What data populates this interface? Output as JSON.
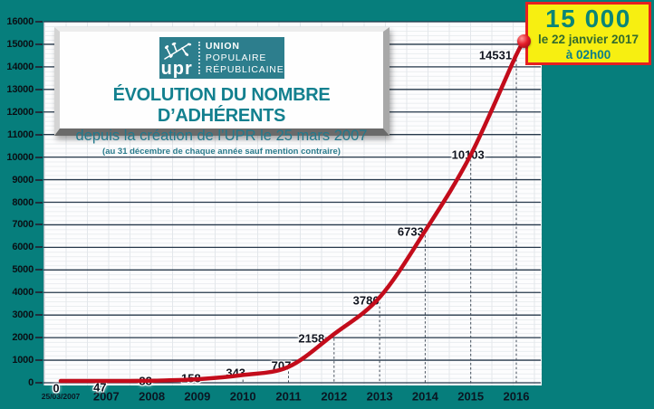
{
  "title_card": {
    "logo": {
      "acronym": "upr",
      "org_lines": [
        "UNION",
        "POPULAIRE",
        "RÉPUBLICAINE"
      ]
    },
    "heading": "ÉVOLUTION DU NOMBRE D’ADHÉRENTS",
    "subheading": "depuis la création de l’UPR le 25 mars 2007",
    "note": "(au 31 décembre de chaque année sauf mention contraire)"
  },
  "callout": {
    "headline": "15 000",
    "date_line": "le 22 janvier 2017",
    "time_line": "à 02h00"
  },
  "chart_data": {
    "type": "line",
    "title": "Évolution du nombre d’adhérents de l’UPR depuis le 25 mars 2007",
    "categories": [
      "25/03/2007",
      "2007",
      "2008",
      "2009",
      "2010",
      "2011",
      "2012",
      "2013",
      "2014",
      "2015",
      "2016"
    ],
    "values": [
      0,
      47,
      88,
      158,
      343,
      707,
      2158,
      3786,
      6733,
      10103,
      14531
    ],
    "data_labels": [
      "0",
      "47",
      "88",
      "158",
      "343",
      "707",
      "2158",
      "3786",
      "6733",
      "10103",
      "14531"
    ],
    "final_point": {
      "value": 15000,
      "shown_in_callout": "15 000 le 22 janvier 2017 à 02h00"
    },
    "ylim": [
      0,
      16000
    ],
    "y_tick_step": 1000,
    "y_tick_labels": [
      "0",
      "1000",
      "2000",
      "3000",
      "4000",
      "5000",
      "6000",
      "7000",
      "8000",
      "9000",
      "10000",
      "11000",
      "12000",
      "13000",
      "14000",
      "15000",
      "16000"
    ],
    "grid": "major navy horizontal lines every 1000, fine minor grid, dashed vertical leader at each yearly point",
    "line_color": "#c30c1b",
    "marker_color": "#e41d28",
    "background_color": "#067e7c"
  }
}
